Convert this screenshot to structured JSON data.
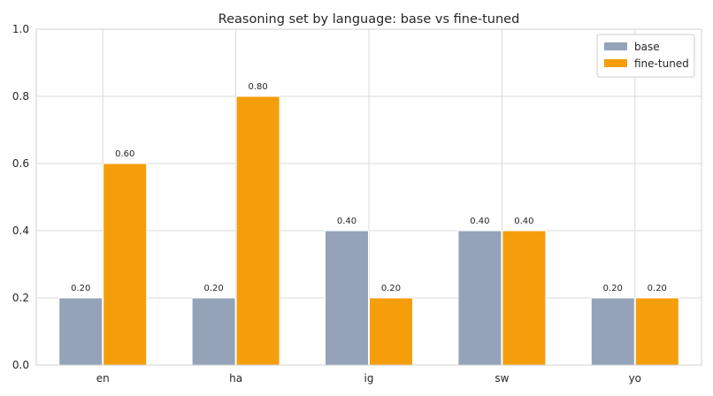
{
  "chart_data": {
    "type": "bar",
    "title": "Reasoning set by language: base vs fine-tuned",
    "xlabel": "",
    "ylabel": "",
    "categories": [
      "en",
      "ha",
      "ig",
      "sw",
      "yo"
    ],
    "series": [
      {
        "name": "base",
        "color": "#94a3b8",
        "values": [
          0.2,
          0.2,
          0.4,
          0.4,
          0.2
        ]
      },
      {
        "name": "fine-tuned",
        "color": "#f59e0b",
        "values": [
          0.6,
          0.8,
          0.2,
          0.4,
          0.2
        ]
      }
    ],
    "ylim": [
      0,
      1.0
    ],
    "yticks": [
      "0.0",
      "0.2",
      "0.4",
      "0.6",
      "0.8",
      "1.0"
    ],
    "data_labels": [
      [
        "0.20",
        "0.20",
        "0.40",
        "0.40",
        "0.20"
      ],
      [
        "0.60",
        "0.80",
        "0.20",
        "0.40",
        "0.20"
      ]
    ],
    "grid": true,
    "legend_position": "top-right"
  }
}
